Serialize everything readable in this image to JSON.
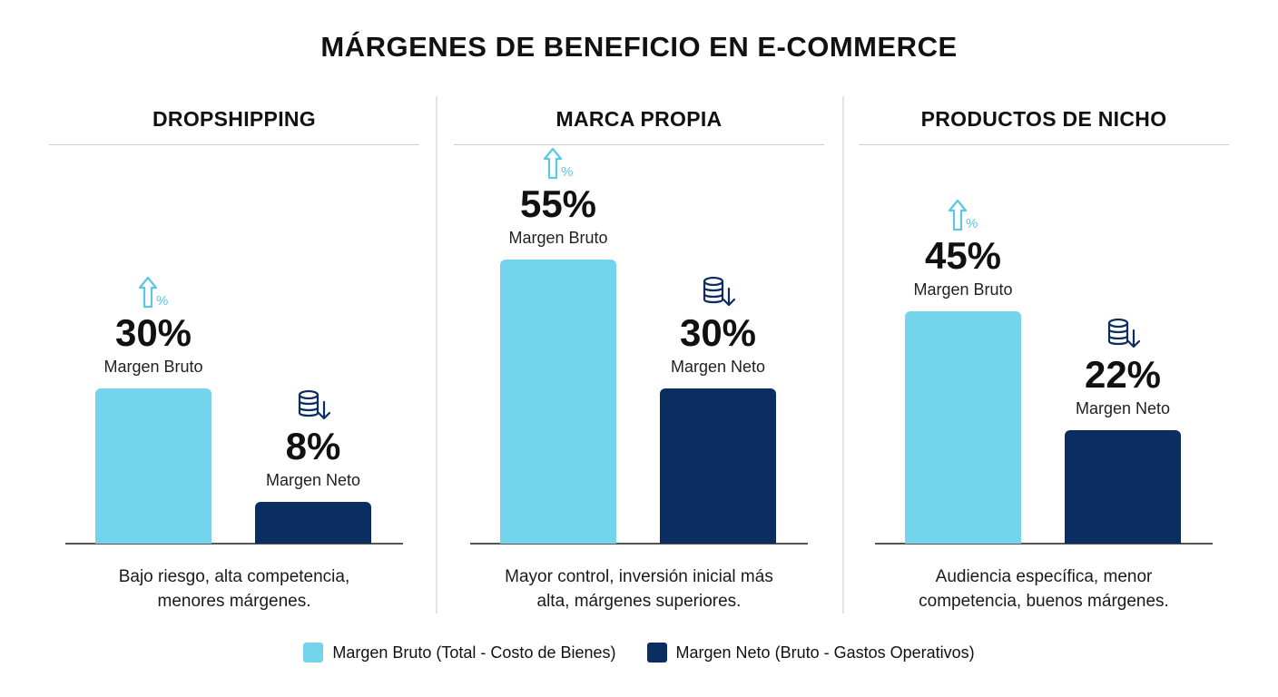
{
  "chart_data": {
    "type": "bar",
    "title": "MÁRGENES DE BENEFICIO EN E-COMMERCE",
    "unit": "%",
    "ylim": [
      0,
      100
    ],
    "grid": false,
    "legend_position": "bottom-center",
    "colors": {
      "gross": "#74d4ec",
      "net": "#0c2d62"
    },
    "icons": {
      "gross": "arrow-up-percent-icon",
      "net": "coin-stack-down-icon"
    },
    "panels": [
      {
        "title": "DROPSHIPPING",
        "gross": {
          "value": 30,
          "display": "30%",
          "label": "Margen Bruto"
        },
        "net": {
          "value": 8,
          "display": "8%",
          "label": "Margen Neto"
        },
        "description": [
          "Bajo riesgo, alta competencia,",
          "menores márgenes."
        ]
      },
      {
        "title": "MARCA PROPIA",
        "gross": {
          "value": 55,
          "display": "55%",
          "label": "Margen Bruto"
        },
        "net": {
          "value": 30,
          "display": "30%",
          "label": "Margen Neto"
        },
        "description": [
          "Mayor control, inversión inicial más",
          "alta, márgenes superiores."
        ]
      },
      {
        "title": "PRODUCTOS DE NICHO",
        "gross": {
          "value": 45,
          "display": "45%",
          "label": "Margen Bruto"
        },
        "net": {
          "value": 22,
          "display": "22%",
          "label": "Margen Neto"
        },
        "description": [
          "Audiencia específica, menor",
          "competencia, buenos márgenes."
        ]
      }
    ],
    "legend": [
      {
        "key": "gross",
        "label": "Margen Bruto (Total - Costo de Bienes)"
      },
      {
        "key": "net",
        "label": "Margen Neto (Bruto - Gastos Operativos)"
      }
    ]
  }
}
